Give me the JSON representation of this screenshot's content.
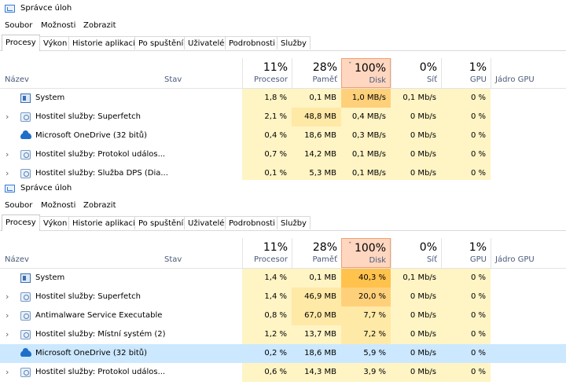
{
  "colors": {
    "heat_light": "#fff4c4",
    "heat_mid": "#ffe9a6",
    "heat_strong": "#ffd07a",
    "heat_top": "#ffc24d",
    "sort_header": "#ffd6c0",
    "selected_row": "#cce8ff"
  },
  "panels": [
    {
      "title": "Správce úloh",
      "menu": [
        "Soubor",
        "Možnosti",
        "Zobrazit"
      ],
      "tabs": [
        "Procesy",
        "Výkon",
        "Historie aplikací",
        "Po spuštění",
        "Uživatelé",
        "Podrobnosti",
        "Služby"
      ],
      "active_tab": "Procesy",
      "header": {
        "name": "Název",
        "status": "Stav",
        "cpu_pct": "11%",
        "cpu": "Procesor",
        "mem_pct": "28%",
        "mem": "Paměť",
        "disk_pct": "100%",
        "disk": "Disk",
        "net_pct": "0%",
        "net": "Síť",
        "gpu_pct": "1%",
        "gpu": "GPU",
        "gpu_engine": "Jádro GPU"
      },
      "rows": [
        {
          "name": "System",
          "icon": "system-icon",
          "expandable": false,
          "cpu": "1,8 %",
          "mem": "0,1 MB",
          "disk": "1,0 MB/s",
          "net": "0,1 Mb/s",
          "gpu": "0 %",
          "cpu_heat": "#fff4c4",
          "mem_heat": "#fff4c4",
          "disk_heat": "#ffd07a"
        },
        {
          "name": "Hostitel služby: Superfetch",
          "icon": "gear-icon",
          "expandable": true,
          "cpu": "2,1 %",
          "mem": "48,8 MB",
          "disk": "0,4 MB/s",
          "net": "0 Mb/s",
          "gpu": "0 %",
          "cpu_heat": "#fff4c4",
          "mem_heat": "#ffe9a6",
          "disk_heat": "#fff4c4"
        },
        {
          "name": "Microsoft OneDrive (32 bitů)",
          "icon": "onedrive-cloud-icon",
          "expandable": false,
          "cpu": "0,4 %",
          "mem": "18,6 MB",
          "disk": "0,3 MB/s",
          "net": "0 Mb/s",
          "gpu": "0 %",
          "cpu_heat": "#fff4c4",
          "mem_heat": "#fff4c4",
          "disk_heat": "#fff4c4"
        },
        {
          "name": "Hostitel služby: Protokol událos...",
          "icon": "gear-icon",
          "expandable": true,
          "cpu": "0,7 %",
          "mem": "14,2 MB",
          "disk": "0,1 MB/s",
          "net": "0 Mb/s",
          "gpu": "0 %",
          "cpu_heat": "#fff4c4",
          "mem_heat": "#fff4c4",
          "disk_heat": "#fff4c4"
        },
        {
          "name": "Hostitel služby: Služba DPS (Dia...",
          "icon": "gear-icon",
          "expandable": true,
          "cpu": "0,1 %",
          "mem": "5,3 MB",
          "disk": "0,1 MB/s",
          "net": "0 Mb/s",
          "gpu": "0 %",
          "cpu_heat": "#fff4c4",
          "mem_heat": "#fff4c4",
          "disk_heat": "#fff4c4"
        }
      ]
    },
    {
      "title": "Správce úloh",
      "menu": [
        "Soubor",
        "Možnosti",
        "Zobrazit"
      ],
      "tabs": [
        "Procesy",
        "Výkon",
        "Historie aplikací",
        "Po spuštění",
        "Uživatelé",
        "Podrobnosti",
        "Služby"
      ],
      "active_tab": "Procesy",
      "header": {
        "name": "Název",
        "status": "Stav",
        "cpu_pct": "11%",
        "cpu": "Procesor",
        "mem_pct": "28%",
        "mem": "Paměť",
        "disk_pct": "100%",
        "disk": "Disk",
        "net_pct": "0%",
        "net": "Síť",
        "gpu_pct": "1%",
        "gpu": "GPU",
        "gpu_engine": "Jádro GPU"
      },
      "rows": [
        {
          "name": "System",
          "icon": "system-icon",
          "expandable": false,
          "cpu": "1,4 %",
          "mem": "0,1 MB",
          "disk": "40,3 %",
          "net": "0,1 Mb/s",
          "gpu": "0 %",
          "cpu_heat": "#fff4c4",
          "mem_heat": "#fff4c4",
          "disk_heat": "#ffc24d"
        },
        {
          "name": "Hostitel služby: Superfetch",
          "icon": "gear-icon",
          "expandable": true,
          "cpu": "1,4 %",
          "mem": "46,9 MB",
          "disk": "20,0 %",
          "net": "0 Mb/s",
          "gpu": "0 %",
          "cpu_heat": "#fff4c4",
          "mem_heat": "#ffe9a6",
          "disk_heat": "#ffd07a"
        },
        {
          "name": "Antimalware Service Executable",
          "icon": "gear-icon",
          "expandable": true,
          "cpu": "0,8 %",
          "mem": "67,0 MB",
          "disk": "7,7 %",
          "net": "0 Mb/s",
          "gpu": "0 %",
          "cpu_heat": "#fff4c4",
          "mem_heat": "#ffe9a6",
          "disk_heat": "#ffe9a6"
        },
        {
          "name": "Hostitel služby: Místní systém (2)",
          "icon": "gear-icon",
          "expandable": true,
          "cpu": "1,2 %",
          "mem": "13,7 MB",
          "disk": "7,2 %",
          "net": "0 Mb/s",
          "gpu": "0 %",
          "cpu_heat": "#fff4c4",
          "mem_heat": "#fff4c4",
          "disk_heat": "#ffe9a6"
        },
        {
          "name": "Microsoft OneDrive (32 bitů)",
          "icon": "onedrive-cloud-icon",
          "expandable": false,
          "selected": true,
          "cpu": "0,2 %",
          "mem": "18,6 MB",
          "disk": "5,9 %",
          "net": "0 Mb/s",
          "gpu": "0 %",
          "cpu_heat": "#d9edf6",
          "mem_heat": "#d9edf6",
          "disk_heat": "#d9edf6"
        },
        {
          "name": "Hostitel služby: Protokol událos...",
          "icon": "gear-icon",
          "expandable": true,
          "cpu": "0,6 %",
          "mem": "14,3 MB",
          "disk": "3,9 %",
          "net": "0 Mb/s",
          "gpu": "0 %",
          "cpu_heat": "#fff4c4",
          "mem_heat": "#fff4c4",
          "disk_heat": "#fff4c4"
        }
      ]
    }
  ]
}
